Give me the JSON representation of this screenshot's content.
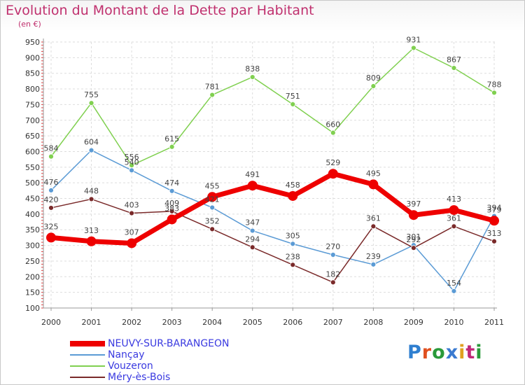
{
  "title": "Evolution du Montant de la Dette par Habitant",
  "unit": "(en €)",
  "logo": {
    "text": "Proxiti",
    "colors": [
      "#2f7fd0",
      "#e05020",
      "#2a9a3a",
      "#3a7ad0",
      "#e0a020",
      "#c02878",
      "#2a9a3a"
    ]
  },
  "chart_data": {
    "type": "line",
    "x": [
      "2000",
      "2001",
      "2002",
      "2003",
      "2004",
      "2005",
      "2006",
      "2007",
      "2008",
      "2009",
      "2010",
      "2011"
    ],
    "ylim": [
      100,
      950
    ],
    "yticks": [
      100,
      150,
      200,
      250,
      300,
      350,
      400,
      450,
      500,
      550,
      600,
      650,
      700,
      750,
      800,
      850,
      900,
      950
    ],
    "grid": true,
    "legend_position": "bottom-left",
    "series": [
      {
        "name": "NEUVY-SUR-BARANGEON",
        "color": "#ee0000",
        "values": [
          325,
          313,
          307,
          383,
          455,
          491,
          458,
          529,
          495,
          397,
          413,
          379
        ],
        "labels": [
          "325",
          "313",
          "307",
          "383",
          "455",
          "491",
          "458",
          "529",
          "495",
          "397",
          "413",
          "379"
        ]
      },
      {
        "name": "Nançay",
        "color": "#5b9bd5",
        "values": [
          476,
          604,
          540,
          474,
          421,
          347,
          305,
          270,
          239,
          301,
          154,
          394
        ],
        "labels": [
          "476",
          "604",
          "540",
          "474",
          "421",
          "347",
          "305",
          "270",
          "239",
          "301",
          "154",
          "394"
        ]
      },
      {
        "name": "Vouzeron",
        "color": "#80d050",
        "values": [
          584,
          755,
          556,
          615,
          781,
          838,
          751,
          660,
          809,
          931,
          867,
          788
        ],
        "labels": [
          "584",
          "755",
          "556",
          "615",
          "781",
          "838",
          "751",
          "660",
          "809",
          "931",
          "867",
          "788"
        ]
      },
      {
        "name": "Méry-ès-Bois",
        "color": "#7a2a2a",
        "values": [
          420,
          448,
          403,
          409,
          352,
          294,
          238,
          182,
          361,
          292,
          361,
          313
        ],
        "labels": [
          "420",
          "448",
          "403",
          "409",
          "352",
          "294",
          "238",
          "182",
          "361",
          "292",
          "361",
          "313"
        ]
      }
    ]
  }
}
